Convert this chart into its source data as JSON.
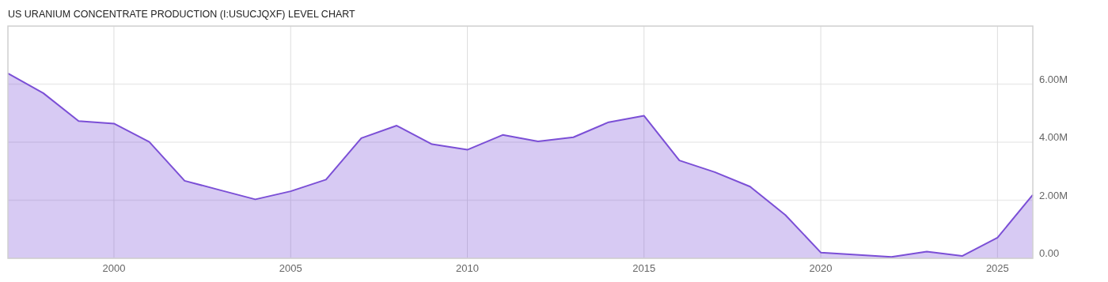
{
  "chart_data": {
    "type": "area",
    "title": "US URANIUM CONCENTRATE PRODUCTION (I:USUCJQXF) LEVEL CHART",
    "x": [
      1997,
      1998,
      1999,
      2000,
      2001,
      2002,
      2003,
      2004,
      2005,
      2006,
      2007,
      2008,
      2009,
      2010,
      2011,
      2012,
      2013,
      2014,
      2015,
      2016,
      2017,
      2018,
      2019,
      2020,
      2021,
      2022,
      2023,
      2024,
      2025,
      2026
    ],
    "series": [
      {
        "color": "#7b4fd6",
        "values": [
          6.37,
          5.69,
          4.73,
          4.64,
          4.01,
          2.67,
          2.35,
          2.03,
          2.31,
          2.71,
          4.14,
          4.57,
          3.93,
          3.74,
          4.25,
          4.03,
          4.17,
          4.69,
          4.91,
          3.37,
          2.97,
          2.47,
          1.49,
          0.2,
          0.12,
          0.05,
          0.23,
          0.08,
          0.71,
          2.19
        ]
      }
    ],
    "xlim": [
      1997,
      2026
    ],
    "xticks": [
      2000,
      2005,
      2010,
      2015,
      2020,
      2025
    ],
    "ylim": [
      0,
      8
    ],
    "yticks": [
      {
        "value": 0,
        "label": "0.00"
      },
      {
        "value": 2,
        "label": "2.00M"
      },
      {
        "value": 4,
        "label": "4.00M"
      },
      {
        "value": 6,
        "label": "6.00M"
      }
    ],
    "grid": true
  }
}
